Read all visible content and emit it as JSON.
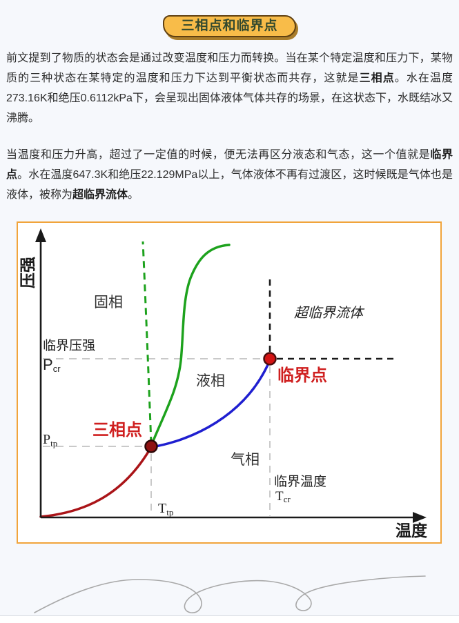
{
  "title_badge": {
    "text": "三相点和临界点"
  },
  "article": {
    "paragraphs": [
      {
        "segments": [
          {
            "text": "前文提到了物质的状态会是通过改变温度和压力而转换。当在某个特定温度和压力下，某物质的三种状态在某特定的温度和压力下达到平衡状态而共存，这就是",
            "bold": false
          },
          {
            "text": "三相点",
            "bold": true
          },
          {
            "text": "。水在温度273.16K和绝压0.6112kPa下，会呈现出固体液体气体共存的场景，在这状态下，水既结冰又沸腾。",
            "bold": false
          }
        ]
      },
      {
        "segments": [
          {
            "text": "当温度和压力升高，超过了一定值的时候，便无法再区分液态和气态，这一个值就是",
            "bold": false
          },
          {
            "text": "临界点",
            "bold": true
          },
          {
            "text": "。水在温度647.3K和绝压22.129MPa以上，气体液体不再有过渡区，这时候既是气体也是液体，被称为",
            "bold": false
          },
          {
            "text": "超临界流体",
            "bold": true
          },
          {
            "text": "。",
            "bold": false
          }
        ]
      }
    ]
  },
  "chart": {
    "labels": {
      "y_axis": "压强",
      "x_axis": "温度",
      "solid_phase": "固相",
      "liquid_phase": "液相",
      "gas_phase": "气相",
      "supercritical": "超临界流体",
      "critical_pressure": "临界压强",
      "critical_temperature": "临界温度",
      "triple_point": "三相点",
      "critical_point": "临界点",
      "p_symbol": "P",
      "t_symbol": "T",
      "cr_subscript": "cr",
      "tp_subscript": "tp"
    },
    "colors": {
      "sublimation_curve": "#aa1418",
      "melting_curve": "#1da21d",
      "vaporization_curve": "#1f1fd0",
      "triple_point_fill": "#8e1212",
      "triple_point_stroke": "#2b0707",
      "critical_point_fill": "#d41414",
      "critical_point_stroke": "#4a0b0b",
      "red_label": "#cf1f1f",
      "axis": "#1a1a1a",
      "gray_dash": "#c9c9c9",
      "frame_border": "#f1a43b"
    }
  },
  "chart_data": {
    "type": "line",
    "title": "",
    "xlabel": "温度",
    "ylabel": "压强",
    "axes_numeric": false,
    "grid": false,
    "regions": [
      "固相",
      "液相",
      "气相",
      "超临界流体"
    ],
    "reference_lines": [
      {
        "label": "临界压强 Pcr",
        "axis": "y",
        "style": "gray-dashed"
      },
      {
        "label": "Ptp",
        "axis": "y",
        "style": "gray-dashed"
      },
      {
        "label": "临界温度 Tcr",
        "axis": "x",
        "style": "gray-dashed"
      },
      {
        "label": "Ttp",
        "axis": "x",
        "style": "gray-dashed"
      }
    ],
    "series": [
      {
        "name": "升华线（固相-气相）",
        "color": "#aa1418",
        "style": "solid",
        "points_norm": [
          [
            0.0,
            0.0
          ],
          [
            0.12,
            0.03
          ],
          [
            0.22,
            0.12
          ],
          [
            0.29,
            0.25
          ]
        ]
      },
      {
        "name": "熔化线（固相-液相）",
        "color": "#1da21d",
        "style": "solid",
        "points_norm": [
          [
            0.29,
            0.25
          ],
          [
            0.37,
            0.55
          ],
          [
            0.39,
            0.75
          ],
          [
            0.44,
            0.92
          ],
          [
            0.5,
            0.98
          ]
        ]
      },
      {
        "name": "熔化线（反常延伸，虚线）",
        "color": "#1da21d",
        "style": "dashed",
        "points_norm": [
          [
            0.29,
            0.25
          ],
          [
            0.28,
            0.6
          ],
          [
            0.27,
            0.99
          ]
        ]
      },
      {
        "name": "汽化线（液相-气相）",
        "color": "#1f1fd0",
        "style": "solid",
        "points_norm": [
          [
            0.29,
            0.25
          ],
          [
            0.45,
            0.33
          ],
          [
            0.55,
            0.44
          ],
          [
            0.6,
            0.57
          ]
        ]
      }
    ],
    "markers": [
      {
        "name": "三相点",
        "norm": [
          0.29,
          0.25
        ],
        "color": "#8e1212"
      },
      {
        "name": "临界点",
        "norm": [
          0.6,
          0.57
        ],
        "color": "#d41414"
      }
    ]
  }
}
